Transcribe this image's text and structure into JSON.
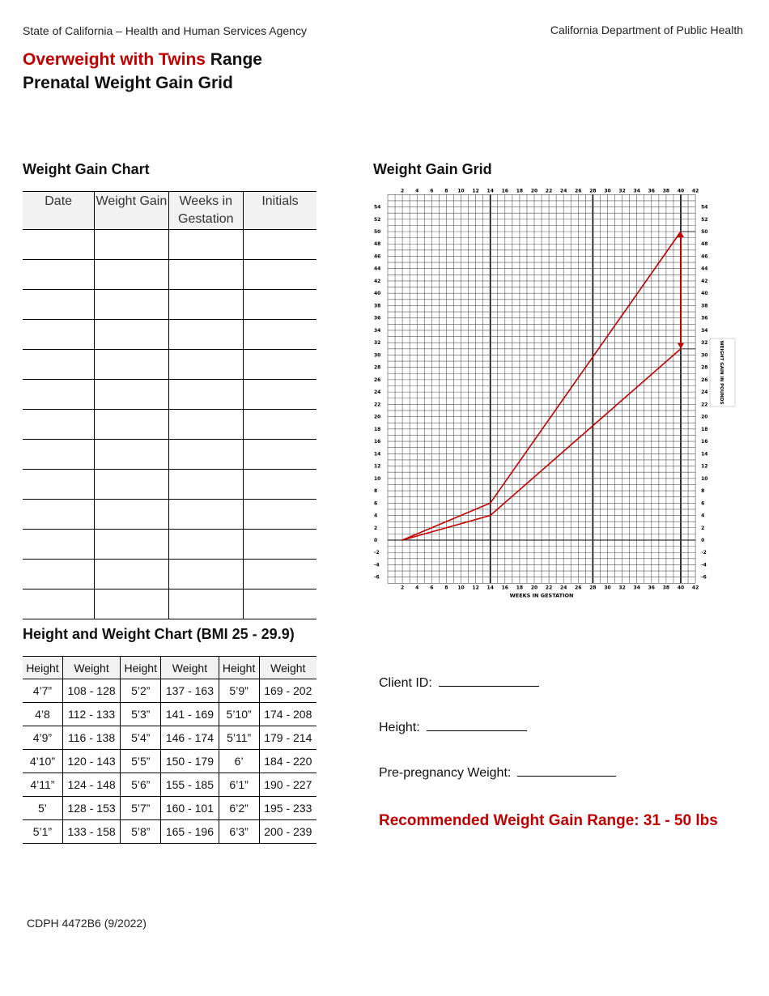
{
  "header": {
    "agency": "State of California – Health and Human Services Agency",
    "department": "California Department of Public Health"
  },
  "title": {
    "highlight": "Overweight with Twins",
    "rest": " Range",
    "line2": "Prenatal Weight Gain Grid"
  },
  "weight_gain_chart": {
    "heading": "Weight Gain Chart",
    "columns": [
      "Date",
      "Weight Gain",
      "Weeks in Gestation",
      "Initials"
    ],
    "row_count": 13
  },
  "height_weight_chart": {
    "heading": "Height and Weight Chart (BMI 25 - 29.9)",
    "columns": [
      "Height",
      "Weight",
      "Height",
      "Weight",
      "Height",
      "Weight"
    ],
    "rows": [
      [
        "4’7”",
        "108 - 128",
        "5’2”",
        "137 - 163",
        "5’9”",
        "169 - 202"
      ],
      [
        "4’8",
        "112 - 133",
        "5’3”",
        "141 - 169",
        "5’10”",
        "174 - 208"
      ],
      [
        "4’9”",
        "116 - 138",
        "5’4”",
        "146 - 174",
        "5’11”",
        "179 - 214"
      ],
      [
        "4’10”",
        "120 - 143",
        "5’5”",
        "150 - 179",
        "6’",
        "184 - 220"
      ],
      [
        "4’11”",
        "124 - 148",
        "5’6”",
        "155 - 185",
        "6’1”",
        "190 - 227"
      ],
      [
        "5’",
        "128 - 153",
        "5’7”",
        "160 - 101",
        "6’2”",
        "195 - 233"
      ],
      [
        "5’1”",
        "133 - 158",
        "5’8”",
        "165 - 196",
        "6’3”",
        "200 - 239"
      ]
    ]
  },
  "grid": {
    "heading": "Weight Gain Grid"
  },
  "chart_data": {
    "type": "line",
    "xlabel": "WEEKS IN GESTATION",
    "ylabel": "WEIGHT GAIN IN POUNDS",
    "xlim": [
      0,
      42
    ],
    "ylim": [
      -7,
      56
    ],
    "xticks": [
      2,
      4,
      6,
      8,
      10,
      12,
      14,
      16,
      18,
      20,
      22,
      24,
      26,
      28,
      30,
      32,
      34,
      36,
      38,
      40,
      42
    ],
    "yticks": [
      54,
      52,
      50,
      48,
      46,
      44,
      42,
      40,
      38,
      36,
      34,
      32,
      30,
      28,
      26,
      24,
      22,
      20,
      18,
      16,
      14,
      12,
      10,
      8,
      6,
      4,
      2,
      0,
      -2,
      -4,
      -6
    ],
    "grid": true,
    "line_color": "#c00000",
    "series": [
      {
        "x": [
          2,
          14,
          40
        ],
        "y": [
          0,
          6,
          50
        ]
      },
      {
        "x": [
          2,
          14,
          40
        ],
        "y": [
          0,
          4,
          31
        ]
      }
    ],
    "range_arrow": {
      "x": 40,
      "from": 31,
      "to": 50
    }
  },
  "client": {
    "client_id_label": "Client ID:",
    "height_label": "Height:",
    "pre_weight_label": "Pre-pregnancy Weight:"
  },
  "recommendation": "Recommended Weight Gain Range: 31 - 50 lbs",
  "footer": {
    "form_id": "CDPH 4472B6 (9/2022)"
  }
}
